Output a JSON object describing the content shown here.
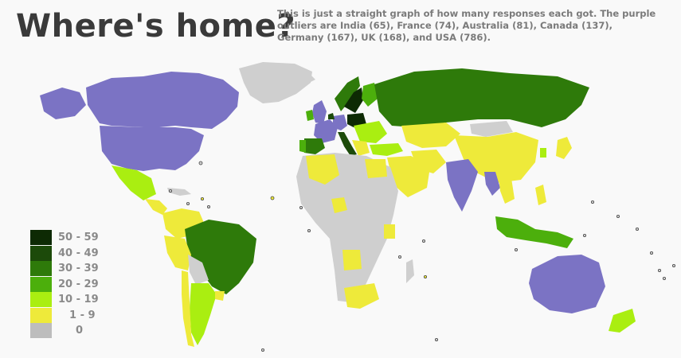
{
  "header": {
    "title": "Where's home?",
    "subtitle": "This is just a straight graph of how many responses each got. The purple outliers are India (65), France (74), Australia (81), Canada (137), Germany (167), UK (168), and USA (786)."
  },
  "colors": {
    "outlier": "#7b73c4",
    "bin_50_59": "#0d2a04",
    "bin_40_49": "#1c4a0a",
    "bin_30_39": "#2e7a0a",
    "bin_20_29": "#4caf0c",
    "bin_10_19": "#aaee11",
    "bin_1_9": "#eeea3a",
    "bin_0": "#bdbdbd",
    "land_zero": "#cfcfcf"
  },
  "legend": [
    {
      "label": "50 - 59",
      "color": "#0d2a04"
    },
    {
      "label": "40 - 49",
      "color": "#1c4a0a"
    },
    {
      "label": "30 - 39",
      "color": "#2e7a0a"
    },
    {
      "label": "20 - 29",
      "color": "#4caf0c"
    },
    {
      "label": "10 - 19",
      "color": "#aaee11"
    },
    {
      "label": "1 - 9",
      "color": "#eeea3a"
    },
    {
      "label": "0",
      "color": "#bdbdbd"
    }
  ]
}
